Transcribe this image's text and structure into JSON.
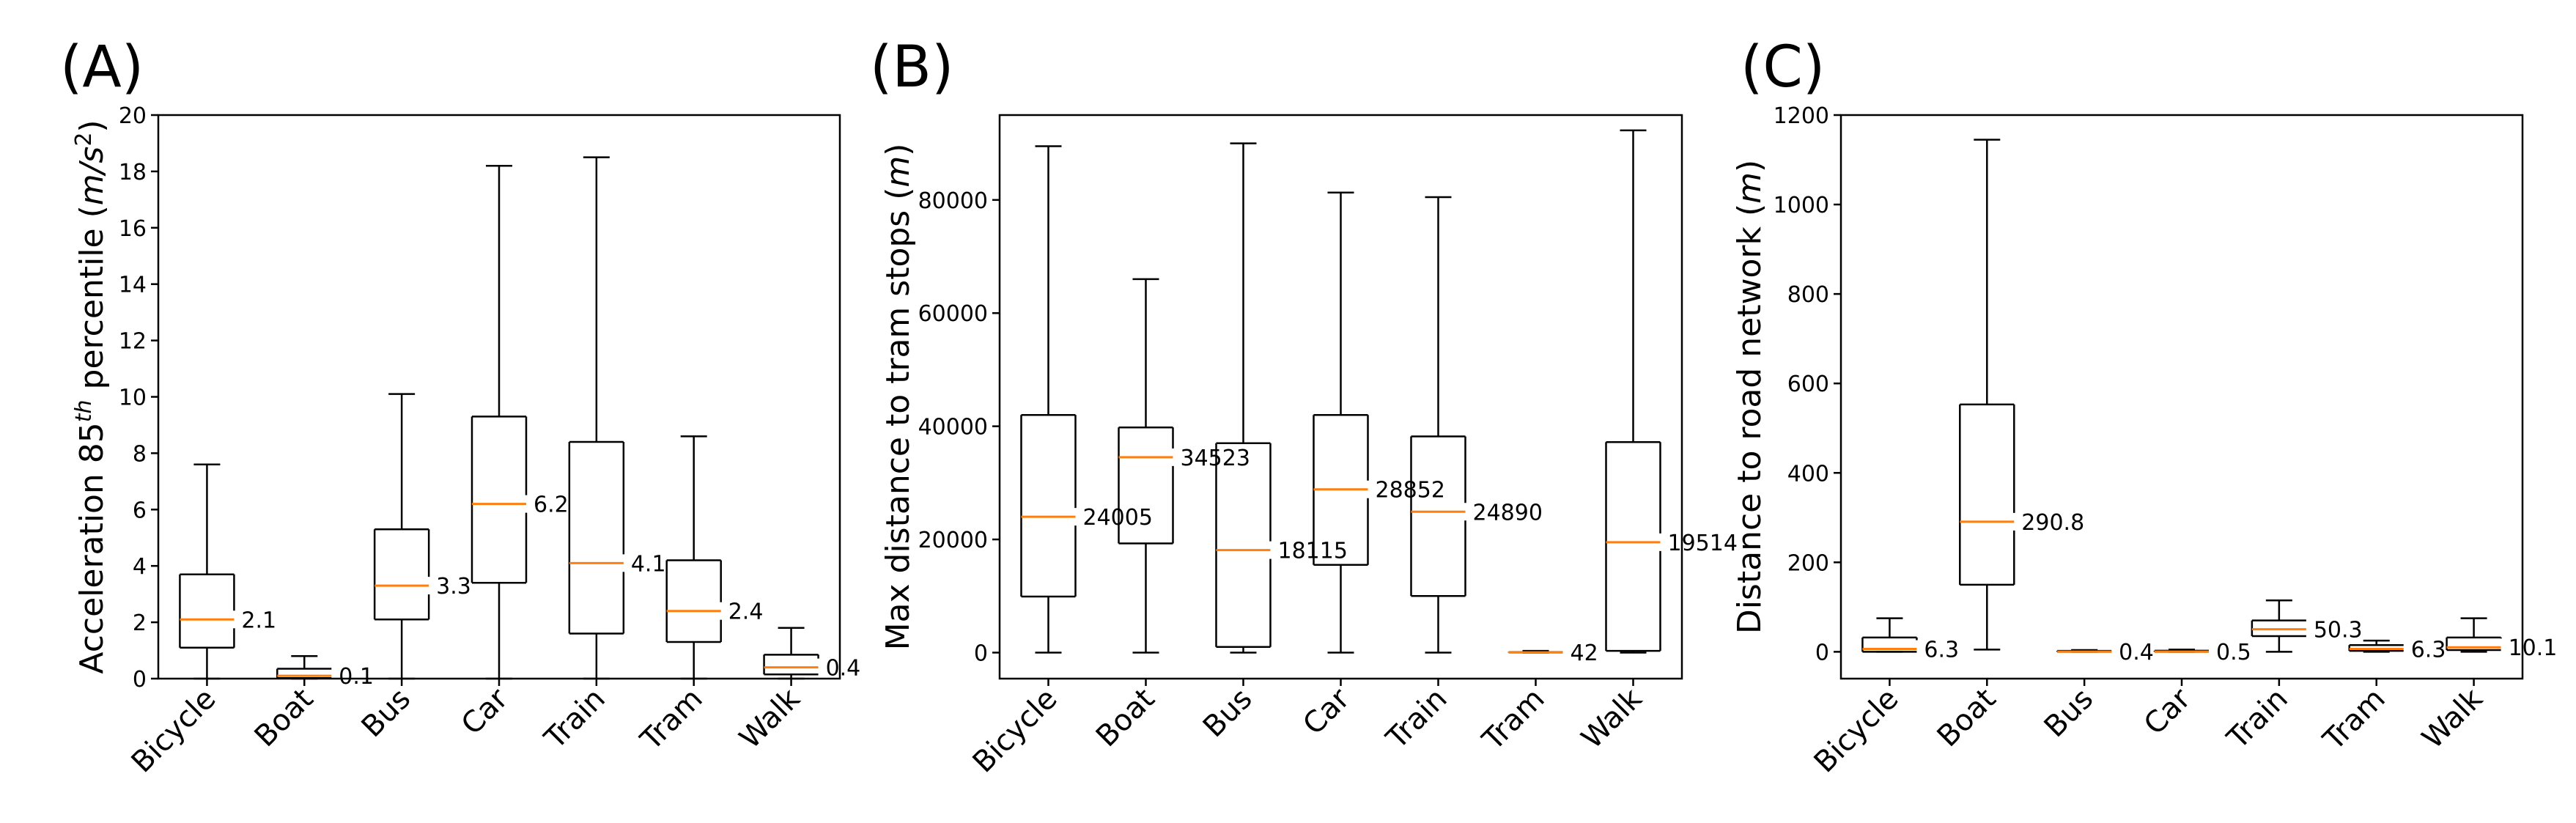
{
  "chart_data": [
    {
      "type": "box",
      "panel_label": "(A)",
      "ylabel_parts": [
        "Acceleration 85",
        "th",
        " percentile (",
        "m/s",
        "2",
        ")"
      ],
      "ylim": [
        0,
        20
      ],
      "yticks": [
        0,
        2,
        4,
        6,
        8,
        10,
        12,
        14,
        16,
        18,
        20
      ],
      "categories": [
        "Bicycle",
        "Boat",
        "Bus",
        "Car",
        "Train",
        "Tram",
        "Walk"
      ],
      "boxes": [
        {
          "whisker_low": 0,
          "q1": 1.1,
          "median": 2.1,
          "q3": 3.7,
          "whisker_high": 7.6,
          "label": "2.1"
        },
        {
          "whisker_low": 0,
          "q1": 0.02,
          "median": 0.1,
          "q3": 0.35,
          "whisker_high": 0.8,
          "label": "0.1"
        },
        {
          "whisker_low": 0,
          "q1": 2.1,
          "median": 3.3,
          "q3": 5.3,
          "whisker_high": 10.1,
          "label": "3.3"
        },
        {
          "whisker_low": 0,
          "q1": 3.4,
          "median": 6.2,
          "q3": 9.3,
          "whisker_high": 18.2,
          "label": "6.2"
        },
        {
          "whisker_low": 0,
          "q1": 1.6,
          "median": 4.1,
          "q3": 8.4,
          "whisker_high": 18.5,
          "label": "4.1"
        },
        {
          "whisker_low": 0,
          "q1": 1.3,
          "median": 2.4,
          "q3": 4.2,
          "whisker_high": 8.6,
          "label": "2.4"
        },
        {
          "whisker_low": 0,
          "q1": 0.15,
          "median": 0.4,
          "q3": 0.85,
          "whisker_high": 1.8,
          "label": "0.4"
        }
      ]
    },
    {
      "type": "box",
      "panel_label": "(B)",
      "ylabel_parts": [
        "Max distance to tram stops (",
        "m",
        ")"
      ],
      "ylim": [
        -4600,
        95000
      ],
      "yticks": [
        0,
        20000,
        40000,
        60000,
        80000
      ],
      "categories": [
        "Bicycle",
        "Boat",
        "Bus",
        "Car",
        "Train",
        "Tram",
        "Walk"
      ],
      "boxes": [
        {
          "whisker_low": 0,
          "q1": 9900,
          "median": 24005,
          "q3": 42000,
          "whisker_high": 89500,
          "label": "24005"
        },
        {
          "whisker_low": 0,
          "q1": 19300,
          "median": 34523,
          "q3": 39800,
          "whisker_high": 66000,
          "label": "34523"
        },
        {
          "whisker_low": 0,
          "q1": 1000,
          "median": 18115,
          "q3": 37000,
          "whisker_high": 90000,
          "label": "18115"
        },
        {
          "whisker_low": 0,
          "q1": 15500,
          "median": 28852,
          "q3": 42000,
          "whisker_high": 81300,
          "label": "28852"
        },
        {
          "whisker_low": 0,
          "q1": 10000,
          "median": 24890,
          "q3": 38200,
          "whisker_high": 80500,
          "label": "24890"
        },
        {
          "whisker_low": 0,
          "q1": 20,
          "median": 42,
          "q3": 100,
          "whisker_high": 300,
          "label": "42"
        },
        {
          "whisker_low": 0,
          "q1": 300,
          "median": 19514,
          "q3": 37200,
          "whisker_high": 92300,
          "label": "19514"
        }
      ]
    },
    {
      "type": "box",
      "panel_label": "(C)",
      "ylabel_parts": [
        "Distance to road network (",
        "m",
        ")"
      ],
      "ylim": [
        -60,
        1200
      ],
      "yticks": [
        0,
        200,
        400,
        600,
        800,
        1000,
        1200
      ],
      "categories": [
        "Bicycle",
        "Boat",
        "Bus",
        "Car",
        "Train",
        "Tram",
        "Walk"
      ],
      "boxes": [
        {
          "whisker_low": 0,
          "q1": 0,
          "median": 6.3,
          "q3": 32,
          "whisker_high": 75,
          "label": "6.3"
        },
        {
          "whisker_low": 5,
          "q1": 150,
          "median": 290.8,
          "q3": 553,
          "whisker_high": 1145,
          "label": "290.8"
        },
        {
          "whisker_low": 0,
          "q1": 0,
          "median": 0.4,
          "q3": 2,
          "whisker_high": 4,
          "label": "0.4"
        },
        {
          "whisker_low": 0,
          "q1": 0,
          "median": 0.5,
          "q3": 2.5,
          "whisker_high": 5,
          "label": "0.5"
        },
        {
          "whisker_low": 0,
          "q1": 35,
          "median": 50.3,
          "q3": 70,
          "whisker_high": 115,
          "label": "50.3"
        },
        {
          "whisker_low": 0,
          "q1": 2,
          "median": 6.3,
          "q3": 15,
          "whisker_high": 25,
          "label": "6.3"
        },
        {
          "whisker_low": 0,
          "q1": 4,
          "median": 10.1,
          "q3": 32,
          "whisker_high": 75,
          "label": "10.1"
        }
      ]
    }
  ],
  "colors": {
    "median": "#ff7f0e",
    "box": "#000000",
    "background": "#ffffff"
  }
}
